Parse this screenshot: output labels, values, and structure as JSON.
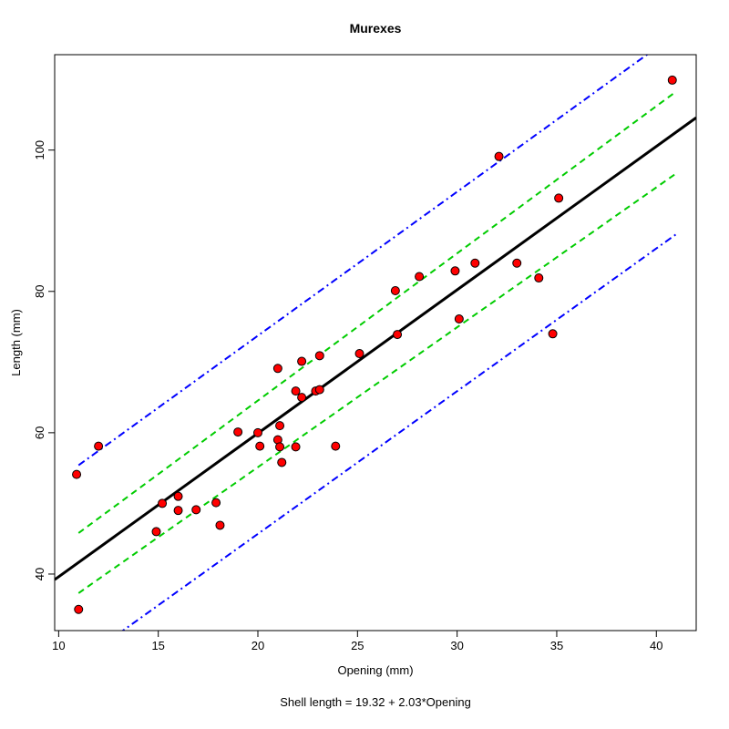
{
  "chart_data": {
    "type": "scatter",
    "title": "Murexes",
    "xlabel": "Opening (mm)",
    "ylabel": "Length (mm)",
    "subtitle": "Shell length = 19.32 + 2.03*Opening",
    "xlim": [
      9.8,
      42.0
    ],
    "ylim": [
      32.0,
      113.5
    ],
    "x_ticks": [
      10,
      15,
      20,
      25,
      30,
      35,
      40
    ],
    "y_ticks": [
      40,
      60,
      80,
      100
    ],
    "grid": false,
    "legend": "none",
    "colors": {
      "points_fill": "#ff0000",
      "points_stroke": "#000000",
      "regression": "#000000",
      "confidence": "#00cc00",
      "prediction": "#0000ff"
    },
    "regression": {
      "intercept": 19.32,
      "slope": 2.03
    },
    "series": [
      {
        "points": [
          {
            "x": 10.9,
            "y": 54.1
          },
          {
            "x": 11.0,
            "y": 35.0
          },
          {
            "x": 12.0,
            "y": 58.1
          },
          {
            "x": 14.9,
            "y": 46.0
          },
          {
            "x": 15.2,
            "y": 50.0
          },
          {
            "x": 16.0,
            "y": 51.0
          },
          {
            "x": 16.0,
            "y": 49.0
          },
          {
            "x": 16.9,
            "y": 49.1
          },
          {
            "x": 17.9,
            "y": 50.1
          },
          {
            "x": 18.1,
            "y": 46.9
          },
          {
            "x": 19.0,
            "y": 60.1
          },
          {
            "x": 20.0,
            "y": 60.0
          },
          {
            "x": 20.1,
            "y": 58.1
          },
          {
            "x": 21.0,
            "y": 69.1
          },
          {
            "x": 21.0,
            "y": 59.0
          },
          {
            "x": 21.1,
            "y": 58.0
          },
          {
            "x": 21.1,
            "y": 61.0
          },
          {
            "x": 21.2,
            "y": 55.8
          },
          {
            "x": 21.9,
            "y": 65.9
          },
          {
            "x": 21.9,
            "y": 58.0
          },
          {
            "x": 22.2,
            "y": 70.1
          },
          {
            "x": 22.2,
            "y": 65.0
          },
          {
            "x": 22.9,
            "y": 65.9
          },
          {
            "x": 23.1,
            "y": 70.9
          },
          {
            "x": 23.1,
            "y": 66.1
          },
          {
            "x": 23.9,
            "y": 58.1
          },
          {
            "x": 25.1,
            "y": 71.2
          },
          {
            "x": 26.9,
            "y": 80.1
          },
          {
            "x": 27.0,
            "y": 73.9
          },
          {
            "x": 28.1,
            "y": 82.1
          },
          {
            "x": 29.9,
            "y": 82.9
          },
          {
            "x": 30.1,
            "y": 76.1
          },
          {
            "x": 30.9,
            "y": 84.0
          },
          {
            "x": 32.1,
            "y": 99.1
          },
          {
            "x": 33.0,
            "y": 84.0
          },
          {
            "x": 34.1,
            "y": 81.9
          },
          {
            "x": 34.8,
            "y": 74.0
          },
          {
            "x": 35.1,
            "y": 93.2
          },
          {
            "x": 40.8,
            "y": 109.9
          }
        ]
      }
    ],
    "confidence_band": {
      "x": [
        11.0,
        41.0
      ],
      "lower": [
        37.3,
        96.7
      ],
      "upper": [
        45.8,
        108.3
      ]
    },
    "prediction_band": {
      "x": [
        11.0,
        41.0
      ],
      "lower": [
        27.5,
        88.1
      ],
      "upper": [
        55.4,
        116.5
      ]
    }
  }
}
